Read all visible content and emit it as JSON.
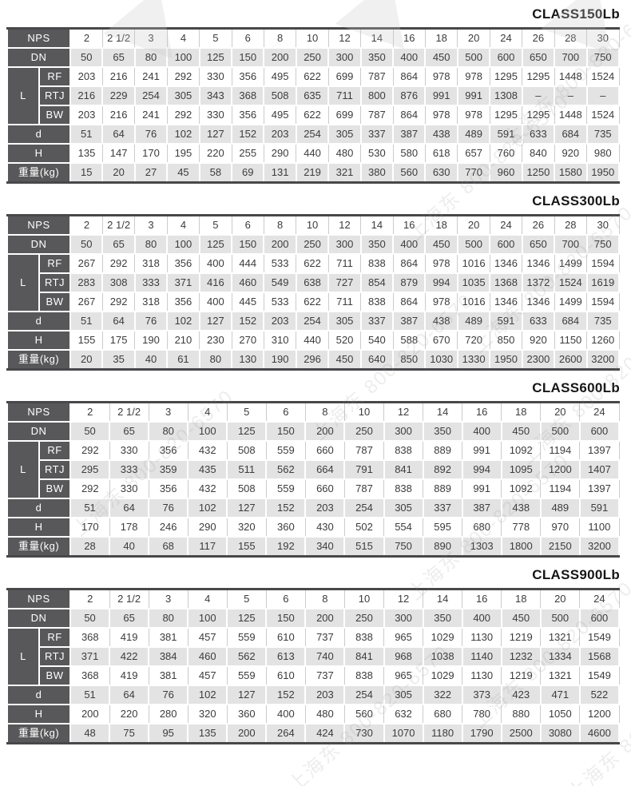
{
  "page": {
    "background": "#ffffff",
    "colors": {
      "header_bg": "#58585a",
      "header_text": "#ffffff",
      "shade_row_bg": "#e3e3e3",
      "light_row_bg": "#ffffff",
      "outer_border": "#48484a",
      "cell_border": "#cbcbcb",
      "value_text": "#3c3c3c",
      "title_text": "#161616"
    }
  },
  "watermark": {
    "text": "上海东 800-820-6570"
  },
  "row_labels": {
    "nps": "NPS",
    "dn": "DN",
    "l": "L",
    "rf": "RF",
    "rtj": "RTJ",
    "bw": "BW",
    "d": "d",
    "h": "H",
    "weight": "重量(kg)"
  },
  "tables": [
    {
      "title": "CLASS150Lb",
      "nps": [
        "2",
        "2 1/2",
        "3",
        "4",
        "5",
        "6",
        "8",
        "10",
        "12",
        "14",
        "16",
        "18",
        "20",
        "24",
        "26",
        "28",
        "30"
      ],
      "dn": [
        "50",
        "65",
        "80",
        "100",
        "125",
        "150",
        "200",
        "250",
        "300",
        "350",
        "400",
        "450",
        "500",
        "600",
        "650",
        "700",
        "750"
      ],
      "rf": [
        "203",
        "216",
        "241",
        "292",
        "330",
        "356",
        "495",
        "622",
        "699",
        "787",
        "864",
        "978",
        "978",
        "1295",
        "1295",
        "1448",
        "1524"
      ],
      "rtj": [
        "216",
        "229",
        "254",
        "305",
        "343",
        "368",
        "508",
        "635",
        "711",
        "800",
        "876",
        "991",
        "991",
        "1308",
        "–",
        "–",
        "–"
      ],
      "bw": [
        "203",
        "216",
        "241",
        "292",
        "330",
        "356",
        "495",
        "622",
        "699",
        "787",
        "864",
        "978",
        "978",
        "1295",
        "1295",
        "1448",
        "1524"
      ],
      "d": [
        "51",
        "64",
        "76",
        "102",
        "127",
        "152",
        "203",
        "254",
        "305",
        "337",
        "387",
        "438",
        "489",
        "591",
        "633",
        "684",
        "735"
      ],
      "h": [
        "135",
        "147",
        "170",
        "195",
        "220",
        "255",
        "290",
        "440",
        "480",
        "530",
        "580",
        "618",
        "657",
        "760",
        "840",
        "920",
        "980"
      ],
      "weight": [
        "15",
        "20",
        "27",
        "45",
        "58",
        "69",
        "131",
        "219",
        "321",
        "380",
        "560",
        "630",
        "770",
        "960",
        "1250",
        "1580",
        "1950"
      ]
    },
    {
      "title": "CLASS300Lb",
      "nps": [
        "2",
        "2 1/2",
        "3",
        "4",
        "5",
        "6",
        "8",
        "10",
        "12",
        "14",
        "16",
        "18",
        "20",
        "24",
        "26",
        "28",
        "30"
      ],
      "dn": [
        "50",
        "65",
        "80",
        "100",
        "125",
        "150",
        "200",
        "250",
        "300",
        "350",
        "400",
        "450",
        "500",
        "600",
        "650",
        "700",
        "750"
      ],
      "rf": [
        "267",
        "292",
        "318",
        "356",
        "400",
        "444",
        "533",
        "622",
        "711",
        "838",
        "864",
        "978",
        "1016",
        "1346",
        "1346",
        "1499",
        "1594"
      ],
      "rtj": [
        "283",
        "308",
        "333",
        "371",
        "416",
        "460",
        "549",
        "638",
        "727",
        "854",
        "879",
        "994",
        "1035",
        "1368",
        "1372",
        "1524",
        "1619"
      ],
      "bw": [
        "267",
        "292",
        "318",
        "356",
        "400",
        "445",
        "533",
        "622",
        "711",
        "838",
        "864",
        "978",
        "1016",
        "1346",
        "1346",
        "1499",
        "1594"
      ],
      "d": [
        "51",
        "64",
        "76",
        "102",
        "127",
        "152",
        "203",
        "254",
        "305",
        "337",
        "387",
        "438",
        "489",
        "591",
        "633",
        "684",
        "735"
      ],
      "h": [
        "155",
        "175",
        "190",
        "210",
        "230",
        "270",
        "310",
        "440",
        "520",
        "540",
        "588",
        "670",
        "720",
        "850",
        "920",
        "1150",
        "1260"
      ],
      "weight": [
        "20",
        "35",
        "40",
        "61",
        "80",
        "130",
        "190",
        "296",
        "450",
        "640",
        "850",
        "1030",
        "1330",
        "1950",
        "2300",
        "2600",
        "3200"
      ]
    },
    {
      "title": "CLASS600Lb",
      "nps": [
        "2",
        "2 1/2",
        "3",
        "4",
        "5",
        "6",
        "8",
        "10",
        "12",
        "14",
        "16",
        "18",
        "20",
        "24"
      ],
      "dn": [
        "50",
        "65",
        "80",
        "100",
        "125",
        "150",
        "200",
        "250",
        "300",
        "350",
        "400",
        "450",
        "500",
        "600"
      ],
      "rf": [
        "292",
        "330",
        "356",
        "432",
        "508",
        "559",
        "660",
        "787",
        "838",
        "889",
        "991",
        "1092",
        "1194",
        "1397"
      ],
      "rtj": [
        "295",
        "333",
        "359",
        "435",
        "511",
        "562",
        "664",
        "791",
        "841",
        "892",
        "994",
        "1095",
        "1200",
        "1407"
      ],
      "bw": [
        "292",
        "330",
        "356",
        "432",
        "508",
        "559",
        "660",
        "787",
        "838",
        "889",
        "991",
        "1092",
        "1194",
        "1397"
      ],
      "d": [
        "51",
        "64",
        "76",
        "102",
        "127",
        "152",
        "203",
        "254",
        "305",
        "337",
        "387",
        "438",
        "489",
        "591"
      ],
      "h": [
        "170",
        "178",
        "246",
        "290",
        "320",
        "360",
        "430",
        "502",
        "554",
        "595",
        "680",
        "778",
        "970",
        "1100"
      ],
      "weight": [
        "28",
        "40",
        "68",
        "117",
        "155",
        "192",
        "340",
        "515",
        "750",
        "890",
        "1303",
        "1800",
        "2150",
        "3200"
      ]
    },
    {
      "title": "CLASS900Lb",
      "nps": [
        "2",
        "2 1/2",
        "3",
        "4",
        "5",
        "6",
        "8",
        "10",
        "12",
        "14",
        "16",
        "18",
        "20",
        "24"
      ],
      "dn": [
        "50",
        "65",
        "80",
        "100",
        "125",
        "150",
        "200",
        "250",
        "300",
        "350",
        "400",
        "450",
        "500",
        "600"
      ],
      "rf": [
        "368",
        "419",
        "381",
        "457",
        "559",
        "610",
        "737",
        "838",
        "965",
        "1029",
        "1130",
        "1219",
        "1321",
        "1549"
      ],
      "rtj": [
        "371",
        "422",
        "384",
        "460",
        "562",
        "613",
        "740",
        "841",
        "968",
        "1038",
        "1140",
        "1232",
        "1334",
        "1568"
      ],
      "bw": [
        "368",
        "419",
        "381",
        "457",
        "559",
        "610",
        "737",
        "838",
        "965",
        "1029",
        "1130",
        "1219",
        "1321",
        "1549"
      ],
      "d": [
        "51",
        "64",
        "76",
        "102",
        "127",
        "152",
        "203",
        "254",
        "305",
        "322",
        "373",
        "423",
        "471",
        "522"
      ],
      "h": [
        "200",
        "220",
        "280",
        "320",
        "360",
        "400",
        "480",
        "560",
        "632",
        "680",
        "780",
        "880",
        "1050",
        "1200"
      ],
      "weight": [
        "48",
        "75",
        "95",
        "135",
        "200",
        "264",
        "424",
        "730",
        "1070",
        "1180",
        "1790",
        "2500",
        "3080",
        "4600"
      ]
    }
  ]
}
